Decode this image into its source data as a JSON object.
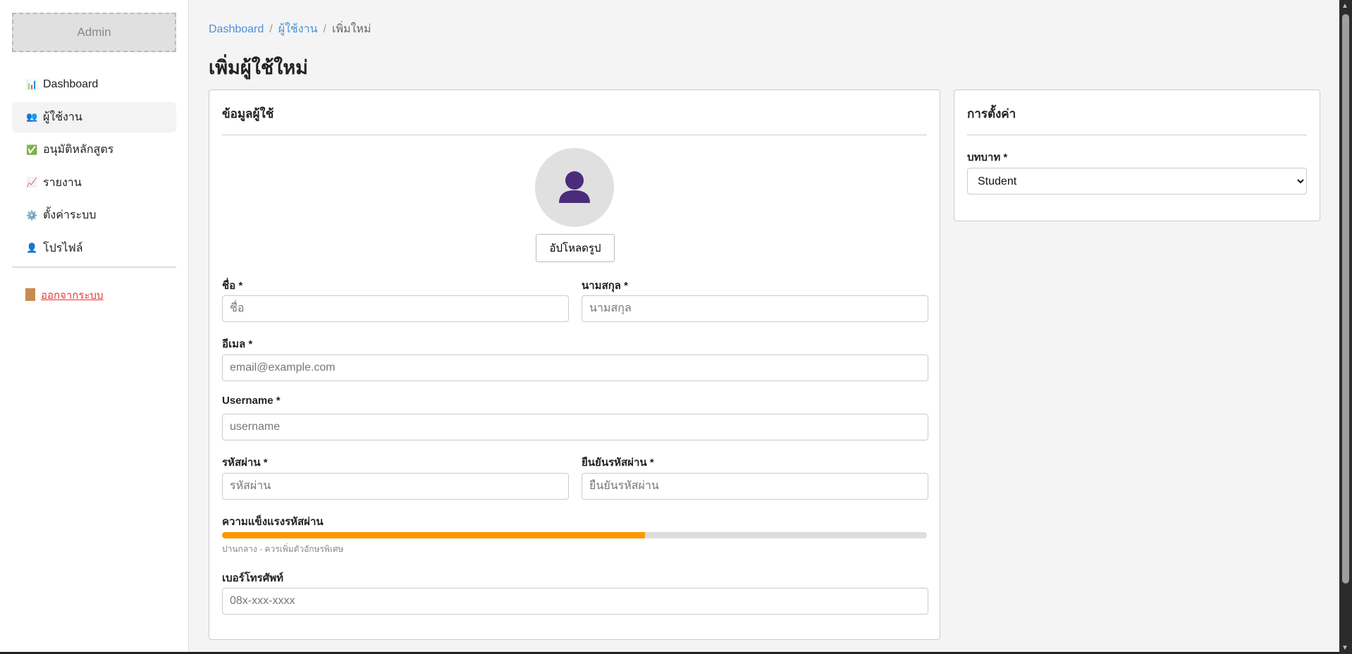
{
  "sidebar": {
    "logo": "Admin",
    "items": [
      {
        "icon": "bar-chart-icon",
        "glyph": "📊",
        "label": "Dashboard",
        "active": false
      },
      {
        "icon": "users-icon",
        "glyph": "👥",
        "label": "ผู้ใช้งาน",
        "active": true
      },
      {
        "icon": "check-box-icon",
        "glyph": "✅",
        "label": "อนุมัติหลักสูตร",
        "active": false
      },
      {
        "icon": "line-chart-icon",
        "glyph": "📈",
        "label": "รายงาน",
        "active": false
      },
      {
        "icon": "gear-icon",
        "glyph": "⚙️",
        "label": "ตั้งค่าระบบ",
        "active": false
      },
      {
        "icon": "user-icon",
        "glyph": "👤",
        "label": "โปรไฟล์",
        "active": false
      }
    ],
    "logout": "ออกจากระบบ"
  },
  "breadcrumb": [
    "Dashboard",
    "ผู้ใช้งาน",
    "เพิ่มใหม่"
  ],
  "page_title": "เพิ่มผู้ใช้ใหม่",
  "user_card": {
    "title": "ข้อมูลผู้ใช้",
    "upload_button": "อัปโหลดรูป",
    "first_name": {
      "label": "ชื่อ *",
      "placeholder": "ชื่อ",
      "value": ""
    },
    "last_name": {
      "label": "นามสกุล *",
      "placeholder": "นามสกุล",
      "value": ""
    },
    "email": {
      "label": "อีเมล *",
      "placeholder": "email@example.com",
      "value": ""
    },
    "username": {
      "label": "Username *",
      "placeholder": "username",
      "value": ""
    },
    "password": {
      "label": "รหัสผ่าน *",
      "placeholder": "รหัสผ่าน",
      "value": ""
    },
    "confirm_password": {
      "label": "ยืนยันรหัสผ่าน *",
      "placeholder": "ยืนยันรหัสผ่าน",
      "value": ""
    },
    "strength": {
      "label": "ความแข็งแรงรหัสผ่าน",
      "percent": 60,
      "color": "#ff9800",
      "hint": "ปานกลาง - ควรเพิ่มตัวอักษรพิเศษ"
    },
    "phone": {
      "label": "เบอร์โทรศัพท์",
      "placeholder": "08x-xxx-xxxx",
      "value": ""
    }
  },
  "settings_card": {
    "title": "การตั้งค่า",
    "role": {
      "label": "บทบาท *",
      "selected": "Student"
    }
  },
  "colors": {
    "link": "#4a90d9",
    "logout": "#e53935",
    "avatar_figure": "#4a2c7a"
  }
}
